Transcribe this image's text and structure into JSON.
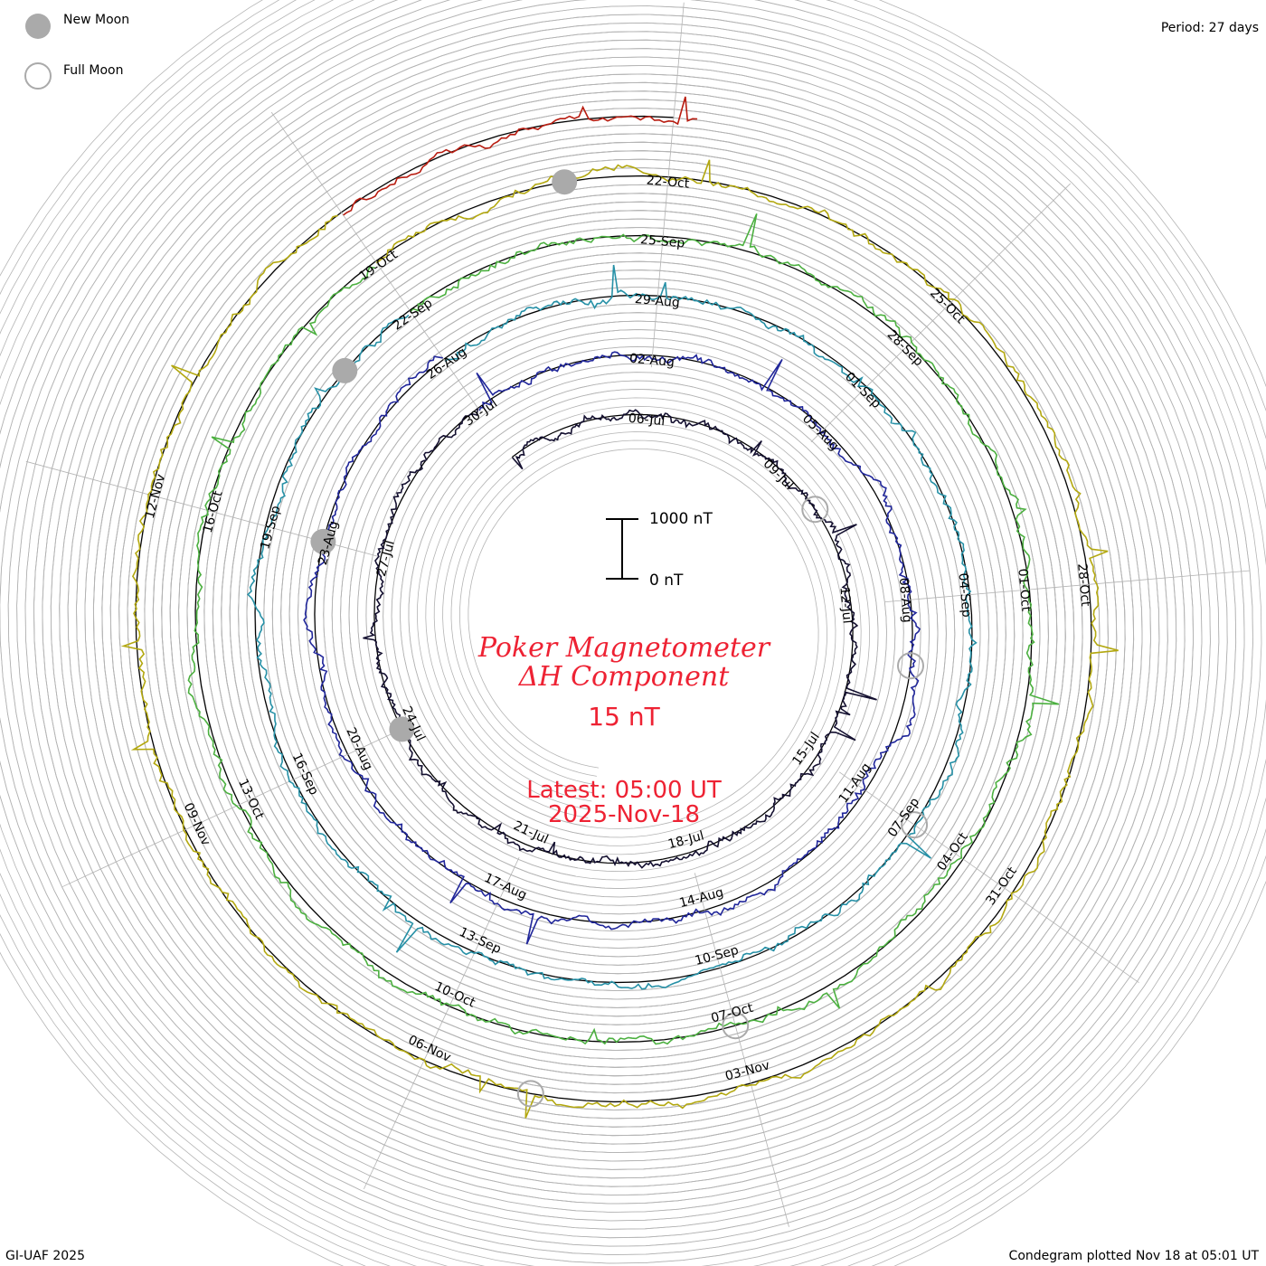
{
  "legend": {
    "new_moon_label": "New Moon",
    "full_moon_label": "Full Moon"
  },
  "period_label": "Period: 27 days",
  "footer_left": "GI-UAF 2025",
  "footer_right": "Condegram plotted Nov 18 at 05:01 UT",
  "title": {
    "line1": "Poker Magnetometer",
    "line2": "ΔH Component",
    "value": "15 nT",
    "latest_line1": "Latest: 05:00 UT",
    "latest_line2": "2025-Nov-18"
  },
  "scale_bar": {
    "top_label": "1000 nT",
    "bottom_label": "0 nT"
  },
  "colors": {
    "title": "#ee2233",
    "grid": "#b4b4b4",
    "new_moon": "#aaaaaa",
    "full_moon": "#aaaaaa"
  },
  "chart_data": {
    "type": "condegram",
    "title": "Poker Magnetometer ΔH Component",
    "period_days": 27,
    "units": "nT",
    "scale_nT": 1000,
    "turns": [
      {
        "start": "2025-07-03",
        "color": "#141030",
        "ticks": [
          "06-Jul",
          "09-Jul",
          "12-Jul",
          "15-Jul",
          "18-Jul",
          "21-Jul",
          "24-Jul",
          "27-Jul",
          "30-Jul"
        ]
      },
      {
        "start": "2025-07-30",
        "color": "#20269a",
        "ticks": [
          "02-Aug",
          "05-Aug",
          "08-Aug",
          "11-Aug",
          "14-Aug",
          "17-Aug",
          "20-Aug",
          "23-Aug",
          "26-Aug"
        ]
      },
      {
        "start": "2025-08-26",
        "color": "#2690a6",
        "ticks": [
          "29-Aug",
          "01-Sep",
          "04-Sep",
          "07-Sep",
          "10-Sep",
          "13-Sep",
          "16-Sep",
          "19-Sep",
          "22-Sep"
        ]
      },
      {
        "start": "2025-09-22",
        "color": "#4cb040",
        "ticks": [
          "25-Sep",
          "28-Sep",
          "01-Oct",
          "04-Oct",
          "07-Oct",
          "10-Oct",
          "13-Oct",
          "16-Oct",
          "19-Oct"
        ]
      },
      {
        "start": "2025-10-19",
        "color": "#b3a810",
        "ticks": [
          "22-Oct",
          "25-Oct",
          "28-Oct",
          "31-Oct",
          "03-Nov",
          "06-Nov",
          "09-Nov",
          "12-Nov"
        ]
      },
      {
        "start": "2025-11-15",
        "color": "#b81c10",
        "ticks": []
      }
    ],
    "new_moons": [
      "2025-07-24",
      "2025-08-23",
      "2025-09-21",
      "2025-10-21"
    ],
    "full_moons": [
      "2025-07-10",
      "2025-08-09",
      "2025-09-07",
      "2025-10-07",
      "2025-11-05"
    ]
  }
}
